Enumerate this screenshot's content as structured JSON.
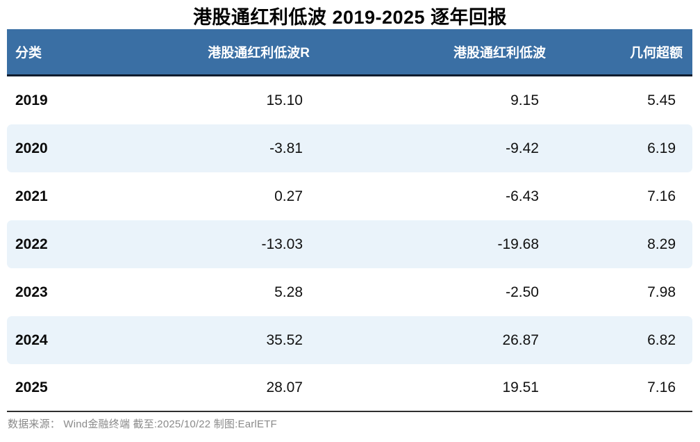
{
  "title": "港股通红利低波 2019-2025 逐年回报",
  "table": {
    "columns": [
      "分类",
      "港股通红利低波R",
      "港股通红利低波",
      "几何超额"
    ],
    "rows": [
      {
        "year": "2019",
        "total_return": "15.10",
        "price_return": "9.15",
        "excess": "5.45"
      },
      {
        "year": "2020",
        "total_return": "-3.81",
        "price_return": "-9.42",
        "excess": "6.19"
      },
      {
        "year": "2021",
        "total_return": "0.27",
        "price_return": "-6.43",
        "excess": "7.16"
      },
      {
        "year": "2022",
        "total_return": "-13.03",
        "price_return": "-19.68",
        "excess": "8.29"
      },
      {
        "year": "2023",
        "total_return": "5.28",
        "price_return": "-2.50",
        "excess": "7.98"
      },
      {
        "year": "2024",
        "total_return": "35.52",
        "price_return": "26.87",
        "excess": "6.82"
      },
      {
        "year": "2025",
        "total_return": "28.07",
        "price_return": "19.51",
        "excess": "7.16"
      }
    ]
  },
  "footer": "数据来源： Wind金融终端 截至:2025/10/22 制图:EarlETF",
  "colors": {
    "header_bg": "#3a6fa4",
    "header_text": "#ffffff",
    "stripe_bg": "#eaf3fa",
    "header_underline": "#101c2e",
    "bottom_rule": "#2e2e2e",
    "footer_text": "#8a8a8a"
  },
  "chart_data": {
    "type": "table",
    "title": "港股通红利低波 2019-2025 逐年回报",
    "columns": [
      "分类",
      "港股通红利低波R",
      "港股通红利低波",
      "几何超额"
    ],
    "categories": [
      "2019",
      "2020",
      "2021",
      "2022",
      "2023",
      "2024",
      "2025"
    ],
    "series": [
      {
        "name": "港股通红利低波R",
        "values": [
          15.1,
          -3.81,
          0.27,
          -13.03,
          5.28,
          35.52,
          28.07
        ]
      },
      {
        "name": "港股通红利低波",
        "values": [
          9.15,
          -9.42,
          -6.43,
          -19.68,
          -2.5,
          26.87,
          19.51
        ]
      },
      {
        "name": "几何超额",
        "values": [
          5.45,
          6.19,
          7.16,
          8.29,
          7.98,
          6.82,
          7.16
        ]
      }
    ],
    "source_note": "数据来源： Wind金融终端 截至:2025/10/22 制图:EarlETF"
  }
}
